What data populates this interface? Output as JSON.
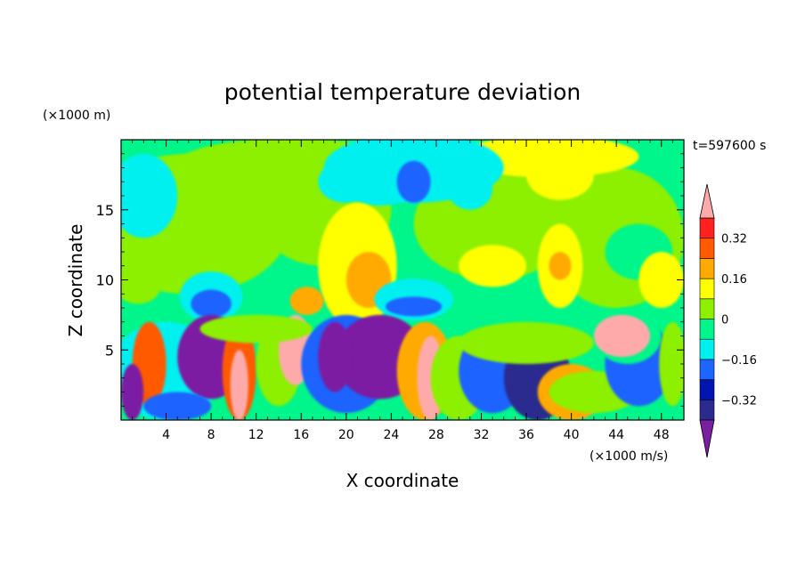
{
  "chart_data": {
    "type": "heatmap",
    "title": "potential temperature deviation",
    "time_label": "t=597600 s",
    "xlabel": "X coordinate",
    "ylabel": "Z coordinate",
    "x_unit": "(×1000 m/s)",
    "y_unit": "(×1000 m)",
    "xlim": [
      0,
      50
    ],
    "ylim": [
      0,
      20
    ],
    "x_ticks": [
      4,
      8,
      12,
      16,
      20,
      24,
      28,
      32,
      36,
      40,
      44,
      48
    ],
    "y_ticks": [
      5,
      10,
      15
    ],
    "colorbar": {
      "levels": [
        -0.4,
        -0.32,
        -0.24,
        -0.16,
        -0.08,
        0,
        0.08,
        0.16,
        0.24,
        0.32,
        0.4
      ],
      "tick_labels": [
        "0.32",
        "0.16",
        "0",
        "−0.16",
        "−0.32"
      ],
      "tick_values": [
        0.32,
        0.16,
        0,
        -0.16,
        -0.32
      ],
      "colors": [
        "#7b1fa2",
        "#2b2b8f",
        "#0015b0",
        "#1e64ff",
        "#00f0f0",
        "#00f58a",
        "#8cf000",
        "#ffff00",
        "#ffaa00",
        "#ff5a00",
        "#ff2020",
        "#ffaaaa"
      ]
    }
  }
}
